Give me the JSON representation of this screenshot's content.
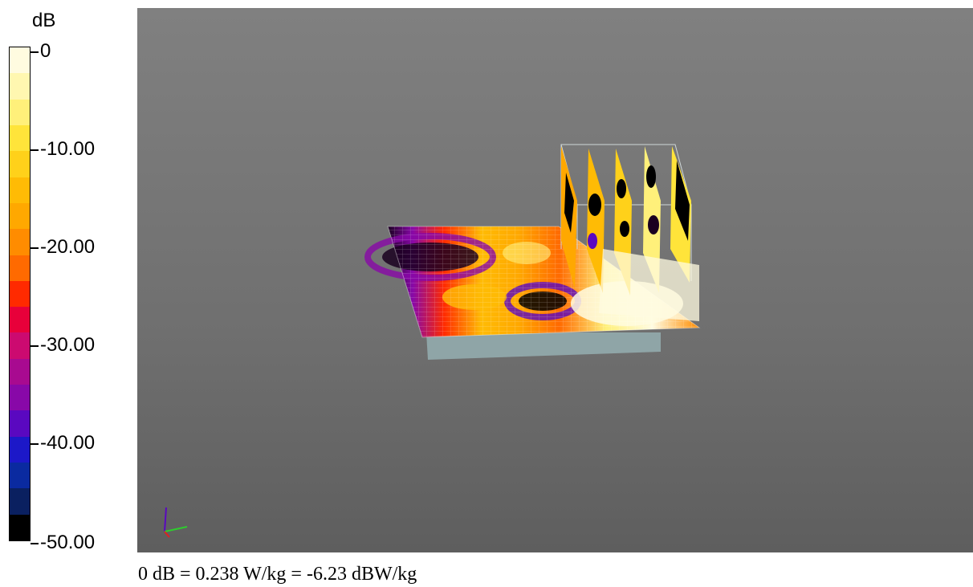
{
  "colorbar": {
    "unit": "dB",
    "ticks": [
      {
        "label": "0",
        "value": 0
      },
      {
        "label": "-10.00",
        "value": -10
      },
      {
        "label": "-20.00",
        "value": -20
      },
      {
        "label": "-30.00",
        "value": -30
      },
      {
        "label": "-40.00",
        "value": -40
      },
      {
        "label": "-50.00",
        "value": -50
      }
    ],
    "bands": [
      "#fffbe0",
      "#fff7b0",
      "#fff07a",
      "#ffe43a",
      "#ffd11a",
      "#ffbb05",
      "#ffa800",
      "#ff8c00",
      "#ff6a00",
      "#ff2a00",
      "#e8003a",
      "#cc0a70",
      "#a80a90",
      "#8808a8",
      "#5a08c0",
      "#1c18c8",
      "#0a2aa0",
      "#0a2060",
      "#000000"
    ]
  },
  "viewport": {
    "background_top": "#808080",
    "background_bottom": "#5e5e5e",
    "axis_triad_icon": "xyz-axes-icon"
  },
  "caption": {
    "text": "0 dB = 0.238 W/kg = -6.23 dBW/kg"
  }
}
